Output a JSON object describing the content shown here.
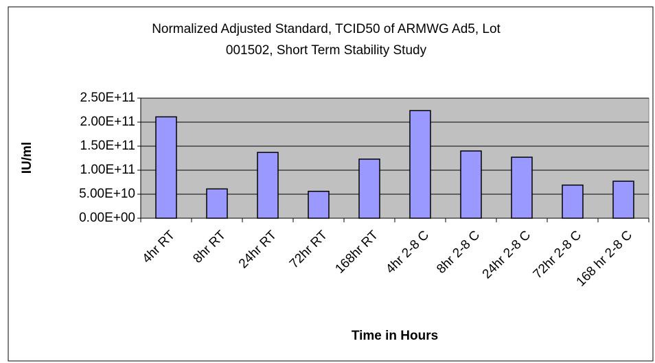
{
  "chart_data": {
    "type": "bar",
    "title": [
      "Normalized Adjusted Standard, TCID50 of ARMWG Ad5, Lot",
      "001502, Short Term Stability Study"
    ],
    "y_label": "IU/ml",
    "x_label": "Time in Hours",
    "categories": [
      "4hr RT",
      "8hr RT",
      "24hr RT",
      "72hr RT",
      "168hr RT",
      "4hr 2-8 C",
      "8hr 2-8 C",
      "24hr 2-8 C",
      "72hr 2-8 C",
      "168 hr 2-8 C"
    ],
    "values": [
      211000000000,
      61000000000,
      137000000000,
      56000000000,
      123000000000,
      224000000000,
      140000000000,
      127000000000,
      69000000000,
      77000000000
    ],
    "color": "#9999ff",
    "ylim": [
      0,
      250000000000
    ],
    "yticks": [
      {
        "value": 0,
        "label": "0.00E+00"
      },
      {
        "value": 50000000000,
        "label": "5.00E+10"
      },
      {
        "value": 100000000000,
        "label": "1.00E+11"
      },
      {
        "value": 150000000000,
        "label": "1.50E+11"
      },
      {
        "value": 200000000000,
        "label": "2.00E+11"
      },
      {
        "value": 250000000000,
        "label": "2.50E+11"
      }
    ],
    "grid": true
  }
}
